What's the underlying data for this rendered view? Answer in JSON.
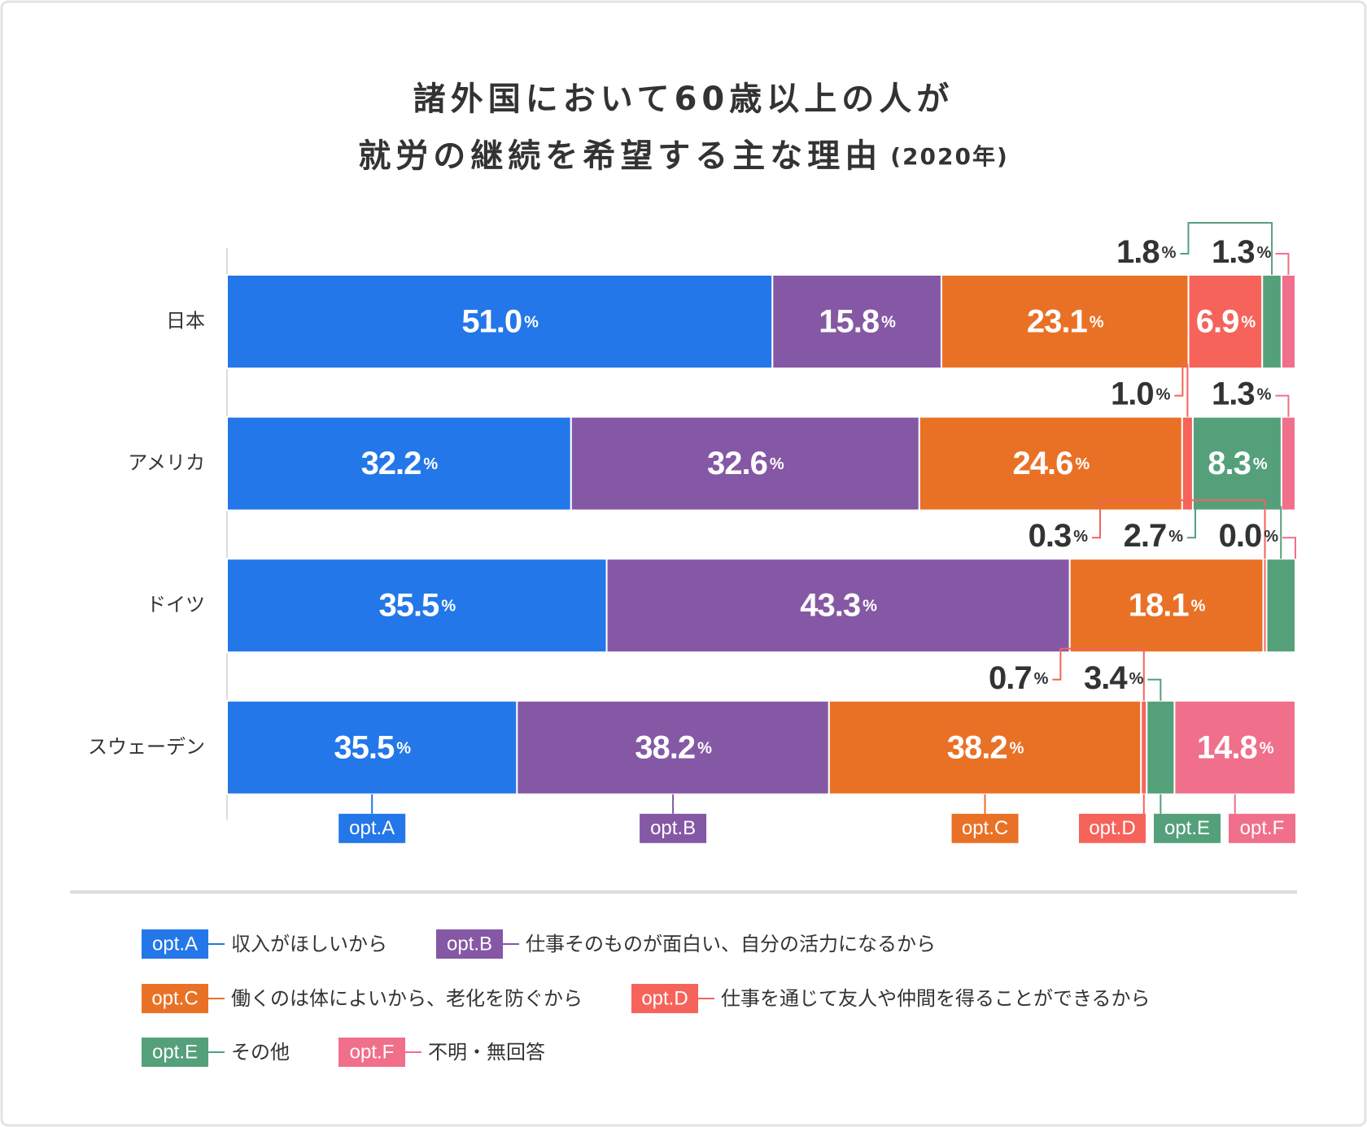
{
  "chart_data": {
    "type": "bar",
    "orientation": "horizontal",
    "stacked": true,
    "title": [
      "諸外国において60歳以上の人が",
      "就労の継続を希望する主な理由"
    ],
    "subtitle": "(2020年)",
    "unit": "%",
    "categories": [
      "日本",
      "アメリカ",
      "ドイツ",
      "スウェーデン"
    ],
    "series": [
      {
        "name": "opt.A",
        "description": "収入がほしいから",
        "color": "#2377e8",
        "values": [
          51.0,
          32.2,
          35.5,
          35.5
        ],
        "value_labels": [
          "51.0",
          "32.2",
          "35.5",
          "35.5"
        ]
      },
      {
        "name": "opt.B",
        "description": "仕事そのものが面白い、自分の活力になるから",
        "color": "#8558a5",
        "values": [
          15.8,
          32.6,
          43.3,
          38.2
        ],
        "value_labels": [
          "15.8",
          "32.6",
          "43.3",
          "38.2"
        ]
      },
      {
        "name": "opt.C",
        "description": "働くのは体によいから、老化を防ぐから",
        "color": "#e97126",
        "values": [
          23.1,
          24.6,
          18.1,
          38.2
        ],
        "value_labels": [
          "23.1",
          "24.6",
          "18.1",
          "38.2"
        ]
      },
      {
        "name": "opt.D",
        "description": "仕事を通じて友人や仲間を得ることができるから",
        "color": "#f6635a",
        "values": [
          6.9,
          1.0,
          0.3,
          0.7
        ],
        "value_labels": [
          "6.9",
          "1.0",
          "0.3",
          "0.7"
        ]
      },
      {
        "name": "opt.E",
        "description": "その他",
        "color": "#54a07b",
        "values": [
          1.8,
          8.3,
          2.7,
          3.4
        ],
        "value_labels": [
          "1.8",
          "8.3",
          "2.7",
          "3.4"
        ]
      },
      {
        "name": "opt.F",
        "description": "不明・無回答",
        "color": "#f06f8a",
        "values": [
          1.3,
          1.3,
          0.0,
          14.8
        ],
        "value_labels": [
          "1.3",
          "1.3",
          "0.0",
          "14.8"
        ]
      }
    ]
  }
}
